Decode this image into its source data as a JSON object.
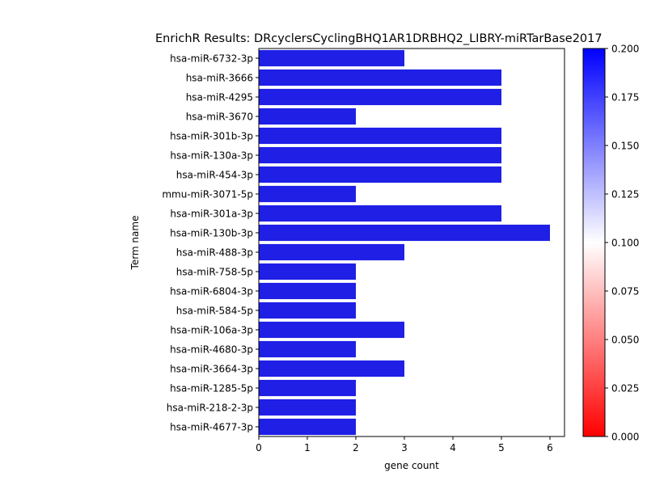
{
  "chart_data": {
    "type": "bar",
    "orientation": "horizontal",
    "title": "EnrichR Results: DRcyclersCyclingBHQ1AR1DRBHQ2_LIBRY-miRTarBase2017",
    "xlabel": "gene count",
    "ylabel": "Term name",
    "xlim": [
      0,
      6.3
    ],
    "xticks": [
      0,
      1,
      2,
      3,
      4,
      5,
      6
    ],
    "categories": [
      "hsa-miR-6732-3p",
      "hsa-miR-3666",
      "hsa-miR-4295",
      "hsa-miR-3670",
      "hsa-miR-301b-3p",
      "hsa-miR-130a-3p",
      "hsa-miR-454-3p",
      "mmu-miR-3071-5p",
      "hsa-miR-301a-3p",
      "hsa-miR-130b-3p",
      "hsa-miR-488-3p",
      "hsa-miR-758-5p",
      "hsa-miR-6804-3p",
      "hsa-miR-584-5p",
      "hsa-miR-106a-3p",
      "hsa-miR-4680-3p",
      "hsa-miR-3664-3p",
      "hsa-miR-1285-5p",
      "hsa-miR-218-2-3p",
      "hsa-miR-4677-3p"
    ],
    "values": [
      3,
      5,
      5,
      2,
      5,
      5,
      5,
      2,
      5,
      6,
      3,
      2,
      2,
      2,
      3,
      2,
      3,
      2,
      2,
      2
    ],
    "bar_color": "#1f1fe6",
    "colorbar": {
      "range": [
        0.0,
        0.2
      ],
      "ticks": [
        "0.000",
        "0.025",
        "0.050",
        "0.075",
        "0.100",
        "0.125",
        "0.150",
        "0.175",
        "0.200"
      ],
      "colors": [
        "#ff0000",
        "#ffffff",
        "#0000ff"
      ]
    },
    "grid": false,
    "legend": "none"
  }
}
